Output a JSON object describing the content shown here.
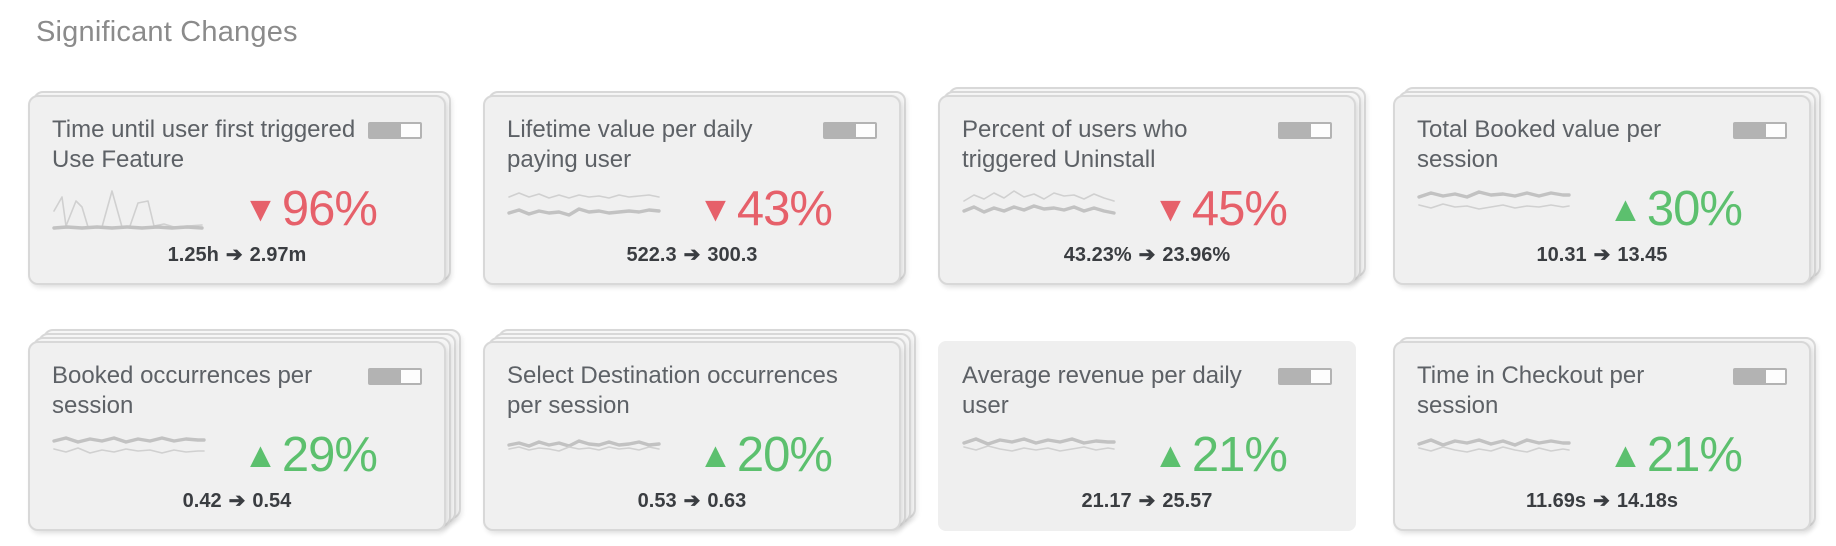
{
  "page": {
    "title": "Significant Changes"
  },
  "arrow_glyph": "➔",
  "colors": {
    "positive": "#5cc06e",
    "negative": "#e6606a"
  },
  "cards": [
    {
      "title": "Time until user first triggered Use Feature",
      "delta_glyph": "▼",
      "delta_value": "96%",
      "delta_color": "#e6606a",
      "delta_direction": "decrease",
      "before": "1.25h",
      "after": "2.97m",
      "has_toggle": true,
      "stack": 1,
      "spark_a": "2,30 10,16 14,45 24,20 30,26 36,46 50,46 60,10 70,46 78,45 86,22 96,20 102,45 112,43 122,46 136,45 150,44",
      "spark_b": "2,47 15,46 30,47 45,46 60,47 75,46 90,47 105,46 120,47 135,46 150,47",
      "spark_a_style": "thin",
      "spark_b_style": "thick"
    },
    {
      "title": "Lifetime value per daily paying user",
      "delta_glyph": "▼",
      "delta_value": "43%",
      "delta_color": "#e6606a",
      "delta_direction": "decrease",
      "before": "522.3",
      "after": "300.3",
      "has_toggle": true,
      "stack": 1,
      "spark_a": "2,16 12,12 22,16 32,13 42,17 52,14 62,17 72,14 82,16 92,15 102,17 112,14 122,16 132,15 142,14 152,16",
      "spark_b": "2,32 12,29 22,33 32,30 42,32 52,31 62,34 72,28 82,31 92,30 102,32 112,31 122,30 132,31 142,29 152,30",
      "spark_a_style": "thin",
      "spark_b_style": "thick"
    },
    {
      "title": "Percent of users who triggered Uninstall",
      "delta_glyph": "▼",
      "delta_value": "45%",
      "delta_color": "#e6606a",
      "delta_direction": "decrease",
      "before": "43.23%",
      "after": "23.96%",
      "has_toggle": true,
      "stack": 2,
      "spark_a": "2,20 12,14 22,18 32,12 42,17 52,10 62,16 72,13 82,18 92,12 102,15 112,14 122,18 132,13 142,17 152,20",
      "spark_b": "2,30 12,26 22,31 32,27 42,30 52,26 62,29 72,25 82,28 92,27 102,29 112,26 122,30 132,27 142,30 152,32",
      "spark_a_style": "thin",
      "spark_b_style": "thick"
    },
    {
      "title": "Total Booked value per session",
      "delta_glyph": "▲",
      "delta_value": "30%",
      "delta_color": "#5cc06e",
      "delta_direction": "increase",
      "before": "10.31",
      "after": "13.45",
      "has_toggle": true,
      "stack": 2,
      "spark_a": "2,16 14,12 26,15 38,13 50,16 62,11 74,14 86,13 98,15 110,12 122,15 134,12 146,14 152,14",
      "spark_b": "2,24 14,27 26,23 38,26 50,25 62,28 74,26 86,24 98,27 110,25 122,26 134,24 146,26 152,25",
      "spark_a_style": "thick",
      "spark_b_style": "thin"
    },
    {
      "title": "Booked occurrences per session",
      "delta_glyph": "▲",
      "delta_value": "29%",
      "delta_color": "#5cc06e",
      "delta_direction": "increase",
      "before": "0.42",
      "after": "0.54",
      "has_toggle": true,
      "stack": 3,
      "spark_a": "2,14 14,11 26,15 38,12 50,14 62,11 74,15 86,12 98,14 110,11 122,14 134,12 146,13 152,13",
      "spark_b": "2,22 14,25 26,21 38,26 50,23 62,25 74,22 86,24 98,23 110,26 122,23 134,25 146,24 152,24",
      "spark_a_style": "thick",
      "spark_b_style": "thin"
    },
    {
      "title": "Select Destination occurrences per session",
      "delta_glyph": "▲",
      "delta_value": "20%",
      "delta_color": "#5cc06e",
      "delta_direction": "increase",
      "before": "0.53",
      "after": "0.63",
      "has_toggle": false,
      "stack": 3,
      "spark_a": "2,18 12,16 22,19 32,15 42,18 52,16 62,19 72,14 82,17 92,18 102,15 112,18 122,17 132,15 142,18 152,17",
      "spark_b": "2,22 12,20 22,23 32,21 42,22 52,24 62,20 72,22 82,21 92,23 102,20 112,22 122,21 132,23 142,20 152,22",
      "spark_a_style": "thick",
      "spark_b_style": "thin"
    },
    {
      "title": "Average revenue per daily user",
      "delta_glyph": "▲",
      "delta_value": "21%",
      "delta_color": "#5cc06e",
      "delta_direction": "increase",
      "before": "21.17",
      "after": "25.57",
      "has_toggle": true,
      "stack": 0,
      "spark_a": "2,16 14,12 26,17 38,13 50,15 62,12 74,16 86,13 98,15 110,12 122,16 134,14 146,15 152,15",
      "spark_b": "2,20 14,23 26,19 38,22 50,24 62,21 74,23 86,21 98,24 110,22 122,20 134,23 146,21 152,22",
      "spark_a_style": "thick",
      "spark_b_style": "thin"
    },
    {
      "title": "Time in Checkout per session",
      "delta_glyph": "▲",
      "delta_value": "21%",
      "delta_color": "#5cc06e",
      "delta_direction": "increase",
      "before": "11.69s",
      "after": "14.18s",
      "has_toggle": true,
      "stack": 1,
      "spark_a": "2,17 14,13 26,18 38,14 50,16 62,13 74,17 86,14 98,18 110,13 122,16 134,14 146,16 152,16",
      "spark_b": "2,21 14,24 26,20 38,23 50,25 62,22 74,24 86,20 98,23 110,25 122,21 134,24 146,22 152,23",
      "spark_a_style": "thick",
      "spark_b_style": "thin"
    }
  ]
}
